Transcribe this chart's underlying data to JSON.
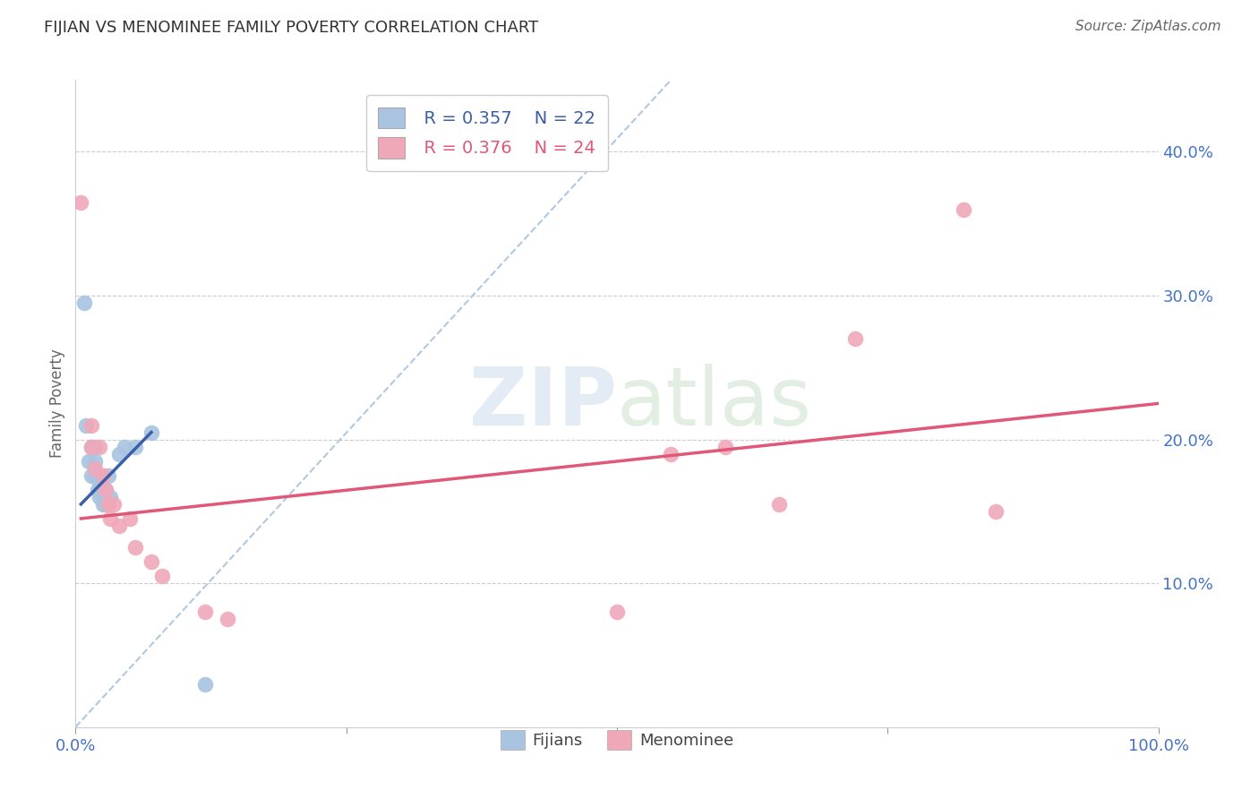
{
  "title": "FIJIAN VS MENOMINEE FAMILY POVERTY CORRELATION CHART",
  "source": "Source: ZipAtlas.com",
  "ylabel_label": "Family Poverty",
  "xlim": [
    0,
    1.0
  ],
  "ylim": [
    0,
    0.45
  ],
  "fijian_R": "R = 0.357",
  "fijian_N": "N = 22",
  "menominee_R": "R = 0.376",
  "menominee_N": "N = 24",
  "fijian_color": "#a8c4e0",
  "menominee_color": "#f0a8b8",
  "fijian_line_color": "#3a5fa8",
  "menominee_line_color": "#e05878",
  "diagonal_color": "#b0c8e0",
  "watermark_color": "#d8e4f0",
  "background_color": "#ffffff",
  "fijians_scatter": [
    [
      0.008,
      0.295
    ],
    [
      0.01,
      0.21
    ],
    [
      0.012,
      0.185
    ],
    [
      0.015,
      0.195
    ],
    [
      0.015,
      0.175
    ],
    [
      0.018,
      0.195
    ],
    [
      0.018,
      0.185
    ],
    [
      0.018,
      0.175
    ],
    [
      0.02,
      0.165
    ],
    [
      0.022,
      0.17
    ],
    [
      0.022,
      0.16
    ],
    [
      0.025,
      0.165
    ],
    [
      0.025,
      0.155
    ],
    [
      0.028,
      0.165
    ],
    [
      0.028,
      0.155
    ],
    [
      0.03,
      0.175
    ],
    [
      0.032,
      0.16
    ],
    [
      0.04,
      0.19
    ],
    [
      0.045,
      0.195
    ],
    [
      0.055,
      0.195
    ],
    [
      0.07,
      0.205
    ],
    [
      0.12,
      0.03
    ]
  ],
  "menominee_scatter": [
    [
      0.005,
      0.365
    ],
    [
      0.015,
      0.21
    ],
    [
      0.015,
      0.195
    ],
    [
      0.018,
      0.18
    ],
    [
      0.022,
      0.195
    ],
    [
      0.025,
      0.175
    ],
    [
      0.028,
      0.165
    ],
    [
      0.03,
      0.155
    ],
    [
      0.032,
      0.145
    ],
    [
      0.035,
      0.155
    ],
    [
      0.04,
      0.14
    ],
    [
      0.05,
      0.145
    ],
    [
      0.055,
      0.125
    ],
    [
      0.07,
      0.115
    ],
    [
      0.08,
      0.105
    ],
    [
      0.12,
      0.08
    ],
    [
      0.14,
      0.075
    ],
    [
      0.5,
      0.08
    ],
    [
      0.55,
      0.19
    ],
    [
      0.6,
      0.195
    ],
    [
      0.65,
      0.155
    ],
    [
      0.72,
      0.27
    ],
    [
      0.82,
      0.36
    ],
    [
      0.85,
      0.15
    ]
  ],
  "fijian_trendline": [
    [
      0.005,
      0.155
    ],
    [
      0.07,
      0.205
    ]
  ],
  "menominee_trendline": [
    [
      0.005,
      0.145
    ],
    [
      1.0,
      0.225
    ]
  ],
  "diagonal_line": [
    [
      0.0,
      0.0
    ],
    [
      0.55,
      0.45
    ]
  ]
}
